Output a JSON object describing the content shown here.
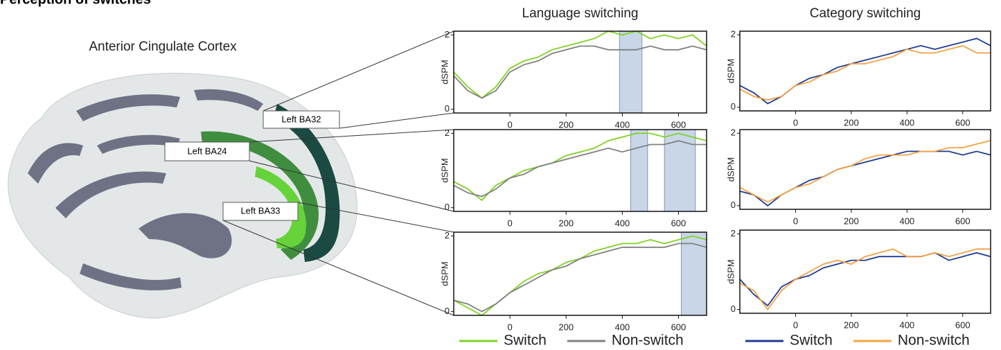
{
  "figure": {
    "heading": "Perception of switches",
    "brain_title": "Anterior Cingulate Cortex",
    "regions": [
      "Left BA32",
      "Left BA24",
      "Left BA33"
    ]
  },
  "chart_data": [
    {
      "type": "line",
      "title": "Language switching",
      "ylabel": "dSPM",
      "x": [
        -200,
        -150,
        -100,
        -50,
        0,
        50,
        100,
        150,
        200,
        250,
        300,
        350,
        400,
        450,
        500,
        550,
        600,
        650,
        700
      ],
      "xlim": [
        -200,
        700
      ],
      "xticks": [
        0,
        200,
        400,
        600
      ],
      "ylim": [
        -0.1,
        2.1
      ],
      "yticks": [
        0,
        2
      ],
      "highlights": [
        [
          390,
          470
        ]
      ],
      "highlight_color": "#c9d6e8",
      "series": [
        {
          "color": "#7ed321",
          "values": [
            1.0,
            0.6,
            0.3,
            0.6,
            1.1,
            1.3,
            1.4,
            1.6,
            1.7,
            1.8,
            1.9,
            2.1,
            2.0,
            2.1,
            1.9,
            2.0,
            1.9,
            2.0,
            1.7
          ]
        },
        {
          "color": "#808080",
          "values": [
            0.9,
            0.5,
            0.3,
            0.5,
            1.0,
            1.2,
            1.3,
            1.5,
            1.6,
            1.7,
            1.7,
            1.6,
            1.6,
            1.6,
            1.7,
            1.6,
            1.6,
            1.7,
            1.6
          ]
        }
      ]
    },
    {
      "type": "line",
      "ylabel": "dSPM",
      "x": [
        -200,
        -150,
        -100,
        -50,
        0,
        50,
        100,
        150,
        200,
        250,
        300,
        350,
        400,
        450,
        500,
        550,
        600,
        650,
        700
      ],
      "xlim": [
        -200,
        700
      ],
      "xticks": [
        0,
        200,
        400,
        600
      ],
      "ylim": [
        -0.1,
        2.1
      ],
      "yticks": [
        0,
        2
      ],
      "highlights": [
        [
          430,
          490
        ],
        [
          550,
          660
        ]
      ],
      "highlight_color": "#c9d6e8",
      "series": [
        {
          "color": "#7ed321",
          "values": [
            0.7,
            0.5,
            0.2,
            0.6,
            0.8,
            1.0,
            1.1,
            1.2,
            1.4,
            1.5,
            1.6,
            1.8,
            1.9,
            2.0,
            2.0,
            1.9,
            2.0,
            1.9,
            1.8
          ]
        },
        {
          "color": "#808080",
          "values": [
            0.6,
            0.4,
            0.3,
            0.5,
            0.8,
            0.9,
            1.1,
            1.2,
            1.3,
            1.4,
            1.5,
            1.6,
            1.5,
            1.6,
            1.7,
            1.7,
            1.8,
            1.7,
            1.7
          ]
        }
      ]
    },
    {
      "type": "line",
      "ylabel": "dSPM",
      "x": [
        -200,
        -150,
        -100,
        -50,
        0,
        50,
        100,
        150,
        200,
        250,
        300,
        350,
        400,
        450,
        500,
        550,
        600,
        650,
        700
      ],
      "xlim": [
        -200,
        700
      ],
      "xticks": [
        0,
        200,
        400,
        600
      ],
      "ylim": [
        -0.1,
        2.1
      ],
      "yticks": [
        0,
        2
      ],
      "highlights": [
        [
          610,
          700
        ]
      ],
      "highlight_color": "#c9d6e8",
      "legend": "below",
      "series": [
        {
          "name": "Switch",
          "color": "#7ed321",
          "values": [
            0.3,
            0.1,
            -0.1,
            0.2,
            0.5,
            0.8,
            1.0,
            1.1,
            1.3,
            1.4,
            1.6,
            1.7,
            1.8,
            1.8,
            1.9,
            1.8,
            1.9,
            2.0,
            1.9
          ]
        },
        {
          "name": "Non-switch",
          "color": "#808080",
          "values": [
            0.3,
            0.2,
            0.0,
            0.2,
            0.5,
            0.7,
            0.9,
            1.1,
            1.2,
            1.4,
            1.5,
            1.6,
            1.7,
            1.7,
            1.7,
            1.7,
            1.8,
            1.8,
            1.7
          ]
        }
      ]
    },
    {
      "type": "line",
      "title": "Category switching",
      "ylabel": "dSPM",
      "x": [
        -200,
        -150,
        -100,
        -50,
        0,
        50,
        100,
        150,
        200,
        250,
        300,
        350,
        400,
        450,
        500,
        550,
        600,
        650,
        700
      ],
      "xlim": [
        -200,
        700
      ],
      "xticks": [
        0,
        200,
        400,
        600
      ],
      "ylim": [
        -0.1,
        2.1
      ],
      "yticks": [
        0,
        2
      ],
      "series": [
        {
          "color": "#1f3a93",
          "values": [
            0.6,
            0.4,
            0.1,
            0.3,
            0.6,
            0.8,
            0.9,
            1.1,
            1.2,
            1.3,
            1.4,
            1.5,
            1.6,
            1.7,
            1.6,
            1.7,
            1.8,
            1.9,
            1.7
          ]
        },
        {
          "color": "#f5a142",
          "values": [
            0.5,
            0.3,
            0.2,
            0.3,
            0.6,
            0.7,
            0.9,
            1.0,
            1.2,
            1.2,
            1.3,
            1.4,
            1.6,
            1.5,
            1.5,
            1.6,
            1.7,
            1.5,
            1.5
          ]
        }
      ]
    },
    {
      "type": "line",
      "ylabel": "dSPM",
      "x": [
        -200,
        -150,
        -100,
        -50,
        0,
        50,
        100,
        150,
        200,
        250,
        300,
        350,
        400,
        450,
        500,
        550,
        600,
        650,
        700
      ],
      "xlim": [
        -200,
        700
      ],
      "xticks": [
        0,
        200,
        400,
        600
      ],
      "ylim": [
        -0.1,
        2.1
      ],
      "yticks": [
        0,
        2
      ],
      "series": [
        {
          "color": "#1f3a93",
          "values": [
            0.4,
            0.3,
            0.0,
            0.3,
            0.5,
            0.7,
            0.8,
            1.0,
            1.1,
            1.2,
            1.3,
            1.4,
            1.5,
            1.5,
            1.5,
            1.5,
            1.4,
            1.5,
            1.4
          ]
        },
        {
          "color": "#f5a142",
          "values": [
            0.5,
            0.3,
            0.1,
            0.3,
            0.5,
            0.6,
            0.8,
            1.0,
            1.1,
            1.3,
            1.4,
            1.4,
            1.4,
            1.5,
            1.5,
            1.6,
            1.6,
            1.7,
            1.8
          ]
        }
      ]
    },
    {
      "type": "line",
      "ylabel": "dSPM",
      "x": [
        -200,
        -150,
        -100,
        -50,
        0,
        50,
        100,
        150,
        200,
        250,
        300,
        350,
        400,
        450,
        500,
        550,
        600,
        650,
        700
      ],
      "xlim": [
        -200,
        700
      ],
      "xticks": [
        0,
        200,
        400,
        600
      ],
      "ylim": [
        -0.1,
        2.1
      ],
      "yticks": [
        0,
        2
      ],
      "legend": "below",
      "series": [
        {
          "name": "Switch",
          "color": "#1f3a93",
          "values": [
            0.8,
            0.4,
            0.1,
            0.6,
            0.8,
            0.9,
            1.1,
            1.2,
            1.3,
            1.3,
            1.4,
            1.4,
            1.4,
            1.4,
            1.5,
            1.3,
            1.4,
            1.5,
            1.4
          ]
        },
        {
          "name": "Non-switch",
          "color": "#f5a142",
          "values": [
            0.7,
            0.5,
            0.0,
            0.5,
            0.8,
            1.0,
            1.2,
            1.3,
            1.2,
            1.4,
            1.5,
            1.6,
            1.4,
            1.4,
            1.5,
            1.4,
            1.5,
            1.6,
            1.6
          ]
        }
      ]
    }
  ]
}
